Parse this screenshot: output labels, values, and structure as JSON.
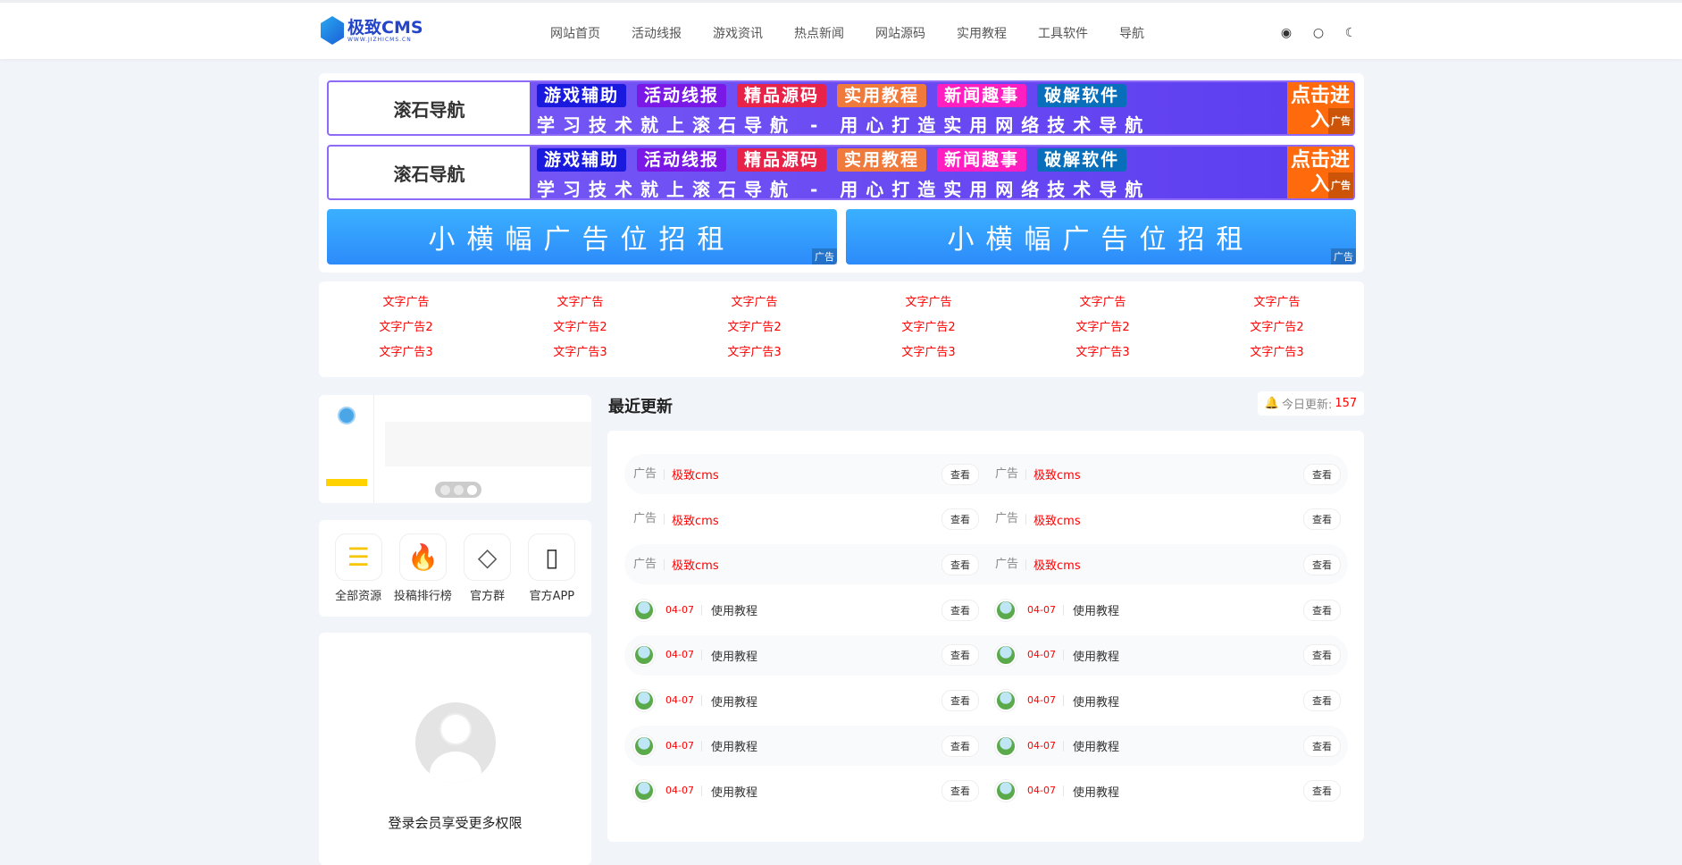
{
  "header": {
    "logo_title": "极致CMS",
    "logo_sub": "WWW.JIZHICMS.CN",
    "nav": [
      "网站首页",
      "活动线报",
      "游戏资讯",
      "热点新闻",
      "网站源码",
      "实用教程",
      "工具软件",
      "导航"
    ],
    "icons": [
      "user-icon",
      "search-icon",
      "moon-icon"
    ]
  },
  "banners": {
    "logo": "滚石导航",
    "logo_sub": "用心打造实用网络技术导航",
    "tags": [
      {
        "label": "游戏辅助",
        "color": "#1a1adf"
      },
      {
        "label": "活动线报",
        "color": "#7a19e6"
      },
      {
        "label": "精品源码",
        "color": "#e8234a"
      },
      {
        "label": "实用教程",
        "color": "#f07a3c"
      },
      {
        "label": "新闻趣事",
        "color": "#ff1fc0"
      },
      {
        "label": "破解软件",
        "color": "#0a6fba"
      }
    ],
    "slogan": "学习技术就上滚石导航 - 用心打造实用网络技术导航",
    "cta": "点击进入",
    "ad_tag": "广告",
    "small": "小横幅广告位招租"
  },
  "text_ads": {
    "row1": "文字广告",
    "row2": "文字广告2",
    "row3": "文字广告3"
  },
  "quick_links": [
    {
      "label": "全部资源",
      "icon": "list-icon"
    },
    {
      "label": "投稿排行榜",
      "icon": "fire-icon"
    },
    {
      "label": "官方群",
      "icon": "diamond-icon"
    },
    {
      "label": "官方APP",
      "icon": "phone-icon"
    }
  ],
  "login": {
    "text": "登录会员享受更多权限"
  },
  "recent": {
    "title": "最近更新",
    "today_label": "今日更新:",
    "today_count": "157",
    "view_label": "查看",
    "ad_rows": [
      {
        "label": "广告",
        "title": "极致cms"
      },
      {
        "label": "广告",
        "title": "极致cms"
      },
      {
        "label": "广告",
        "title": "极致cms"
      }
    ],
    "post_rows": [
      {
        "date": "04-07",
        "title": "使用教程"
      },
      {
        "date": "04-07",
        "title": "使用教程"
      },
      {
        "date": "04-07",
        "title": "使用教程"
      },
      {
        "date": "04-07",
        "title": "使用教程"
      },
      {
        "date": "04-07",
        "title": "使用教程"
      }
    ]
  }
}
